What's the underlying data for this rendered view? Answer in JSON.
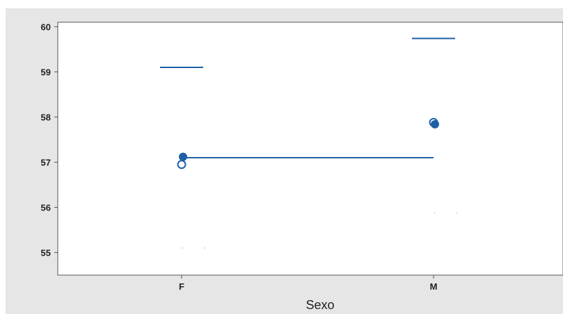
{
  "chart_data": {
    "type": "scatter",
    "title": "",
    "xlabel": "Sexo",
    "ylabel": "",
    "categories": [
      "F",
      "M"
    ],
    "ylim": [
      54.5,
      60.1
    ],
    "yticks": [
      55,
      56,
      57,
      58,
      59,
      60
    ],
    "grid": false,
    "colors": {
      "series": "#1f5fa6",
      "background": "#e6e6e6",
      "plot": "#ffffff"
    },
    "marks": {
      "mean_filled": [
        57.12,
        57.84
      ],
      "mean_open": [
        56.95,
        57.88
      ],
      "upper_bar": [
        59.1,
        59.74
      ],
      "lower_bar": [
        55.1,
        55.88
      ],
      "grand_mean": 57.1
    }
  }
}
